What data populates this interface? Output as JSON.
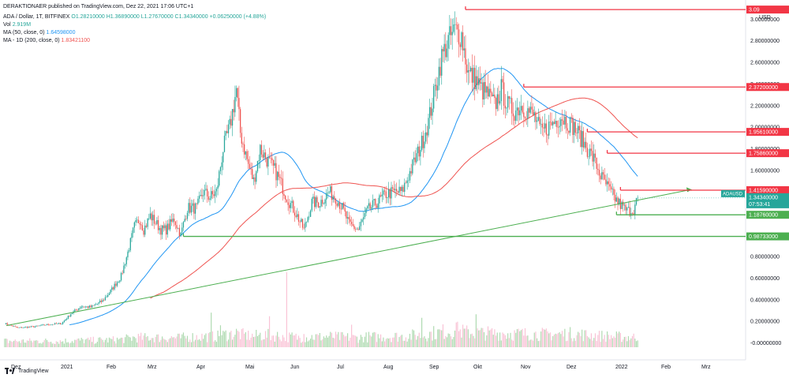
{
  "header": {
    "published": "DERAKTIONAER published on TradingView.com, Dez 22, 2021 17:06 UTC+1",
    "symbol": "ADA / Dollar, 1T, BITFINEX",
    "ohlc": "O1.28210000  H1.36890000  L1.27670000  C1.34340000  +0.06250000 (+4.88%)",
    "vol_label": "Vol",
    "vol_value": "2.919M",
    "ma50_label": "MA (50, close, 0)",
    "ma50_value": "1.64598000",
    "ma200_label": "MA - 1D (200, close, 0)",
    "ma200_value": "1.83421100"
  },
  "footer": {
    "brand": "TradingView"
  },
  "colors": {
    "up": "#26a69a",
    "down": "#ef5350",
    "ma50": "#2196f3",
    "ma200": "#ef5350",
    "support": "#4caf50",
    "resistance": "#f23645"
  },
  "chart_data": {
    "type": "candlestick",
    "currency": "USD",
    "y_ticks": [
      "-0.00000000",
      "0.20000000",
      "0.40000000",
      "0.60000000",
      "0.80000000",
      "1.00000000",
      "1.20000000",
      "1.40000000",
      "1.60000000",
      "1.80000000",
      "2.00000000",
      "2.20000000",
      "2.40000000",
      "2.60000000",
      "2.80000000",
      "3.00000000"
    ],
    "x_ticks": [
      "Dez",
      "2021",
      "Feb",
      "Mrz",
      "Apr",
      "Mai",
      "Jun",
      "Jul",
      "Aug",
      "Sep",
      "Okt",
      "Nov",
      "Dez",
      "2022",
      "Feb",
      "Mrz"
    ],
    "resistance_levels": [
      "3.09",
      "2.37200000",
      "1.95610000",
      "1.75860000",
      "1.41590000"
    ],
    "support_levels": [
      "1.18760000",
      "0.98733000"
    ],
    "last_price_symbol": "ADAUSD",
    "last_price": "1.34340000",
    "countdown": "07:53:41",
    "trendline": {
      "from": [
        0.13,
        0.07
      ],
      "to": [
        0.82,
        1.42
      ]
    },
    "ohlc_anchor_points": [
      [
        0,
        0.18
      ],
      [
        10,
        0.14
      ],
      [
        22,
        0.15
      ],
      [
        32,
        0.17
      ],
      [
        43,
        0.18
      ],
      [
        50,
        0.27
      ],
      [
        58,
        0.34
      ],
      [
        65,
        0.33
      ],
      [
        74,
        0.39
      ],
      [
        80,
        0.48
      ],
      [
        88,
        0.62
      ],
      [
        93,
        0.84
      ],
      [
        98,
        1.08
      ],
      [
        102,
        1.15
      ],
      [
        105,
        1.05
      ],
      [
        110,
        1.18
      ],
      [
        118,
        1.05
      ],
      [
        122,
        1.05
      ],
      [
        128,
        1.15
      ],
      [
        133,
        1.0
      ],
      [
        138,
        1.25
      ],
      [
        145,
        1.25
      ],
      [
        150,
        1.4
      ],
      [
        155,
        1.35
      ],
      [
        160,
        1.4
      ],
      [
        165,
        1.8
      ],
      [
        170,
        2.0
      ],
      [
        175,
        2.35
      ],
      [
        178,
        1.95
      ],
      [
        184,
        1.65
      ],
      [
        188,
        1.5
      ],
      [
        193,
        1.8
      ],
      [
        198,
        1.7
      ],
      [
        204,
        1.6
      ],
      [
        208,
        1.5
      ],
      [
        213,
        1.35
      ],
      [
        220,
        1.2
      ],
      [
        226,
        1.05
      ],
      [
        232,
        1.3
      ],
      [
        238,
        1.3
      ],
      [
        245,
        1.4
      ],
      [
        250,
        1.35
      ],
      [
        255,
        1.25
      ],
      [
        260,
        1.1
      ],
      [
        267,
        1.05
      ],
      [
        274,
        1.23
      ],
      [
        281,
        1.3
      ],
      [
        288,
        1.38
      ],
      [
        295,
        1.4
      ],
      [
        300,
        1.4
      ],
      [
        305,
        1.55
      ],
      [
        310,
        1.7
      ],
      [
        315,
        1.85
      ],
      [
        320,
        2.05
      ],
      [
        325,
        2.35
      ],
      [
        330,
        2.65
      ],
      [
        335,
        2.8
      ],
      [
        340,
        2.9
      ],
      [
        345,
        2.85
      ],
      [
        350,
        2.5
      ],
      [
        355,
        2.45
      ],
      [
        360,
        2.35
      ],
      [
        365,
        2.3
      ],
      [
        370,
        2.2
      ],
      [
        375,
        2.35
      ],
      [
        380,
        2.2
      ],
      [
        385,
        2.15
      ],
      [
        390,
        2.2
      ],
      [
        395,
        2.15
      ],
      [
        400,
        2.1
      ],
      [
        405,
        1.95
      ],
      [
        410,
        2.0
      ],
      [
        415,
        2.05
      ],
      [
        420,
        2.1
      ],
      [
        425,
        2.05
      ],
      [
        430,
        2.0
      ],
      [
        435,
        1.9
      ],
      [
        440,
        1.8
      ],
      [
        445,
        1.7
      ],
      [
        450,
        1.55
      ],
      [
        455,
        1.45
      ],
      [
        460,
        1.35
      ],
      [
        465,
        1.28
      ],
      [
        470,
        1.22
      ],
      [
        475,
        1.24
      ],
      [
        478,
        1.34
      ]
    ]
  }
}
